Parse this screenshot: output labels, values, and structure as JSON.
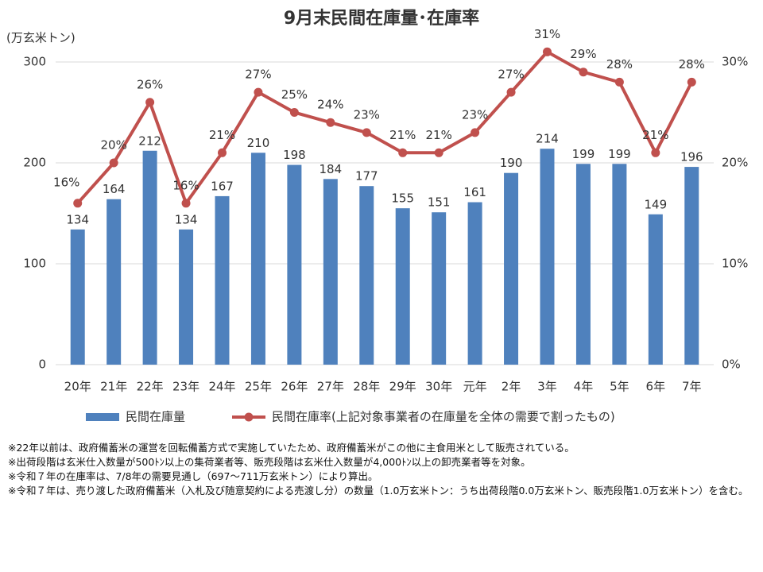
{
  "chart_data": {
    "type": "bar-line",
    "title": "9月末民間在庫量･在庫率",
    "y_label": "(万玄米トン)",
    "categories": [
      "20年",
      "21年",
      "22年",
      "23年",
      "24年",
      "25年",
      "26年",
      "27年",
      "28年",
      "29年",
      "30年",
      "元年",
      "2年",
      "3年",
      "4年",
      "5年",
      "6年",
      "7年"
    ],
    "series": [
      {
        "name": "民間在庫量",
        "type": "bar",
        "color": "#4f81bd",
        "values": [
          134,
          164,
          212,
          134,
          167,
          210,
          198,
          184,
          177,
          155,
          151,
          161,
          190,
          214,
          199,
          199,
          149,
          196
        ]
      },
      {
        "name": "民間在庫率(上記対象事業者の在庫量を全体の需要で割ったもの)",
        "type": "line",
        "axis": "y2",
        "color": "#c0504d",
        "values": [
          16,
          20,
          26,
          16,
          21,
          27,
          25,
          24,
          23,
          21,
          21,
          23,
          27,
          31,
          29,
          28,
          21,
          28
        ],
        "value_labels": [
          "16%",
          "20%",
          "26%",
          "16%",
          "21%",
          "27%",
          "25%",
          "24%",
          "23%",
          "21%",
          "21%",
          "23%",
          "27%",
          "31%",
          "29%",
          "28%",
          "21%",
          "28%"
        ]
      }
    ],
    "ylim": [
      0,
      300
    ],
    "yticks": [
      0,
      100,
      200,
      300
    ],
    "y2lim": [
      0,
      30
    ],
    "y2ticks": [
      {
        "value": 0,
        "label": "0%"
      },
      {
        "value": 10,
        "label": "10%"
      },
      {
        "value": 20,
        "label": "20%"
      },
      {
        "value": 30,
        "label": "30%"
      }
    ],
    "grid": true,
    "notes": [
      "※22年以前は、政府備蓄米の運営を回転備蓄方式で実施していたため、政府備蓄米がこの他に主食用米として販売されている。",
      "※出荷段階は玄米仕入数量が500ﾄﾝ以上の集荷業者等、販売段階は玄米仕入数量が4,000ﾄﾝ以上の卸売業者等を対象。",
      "※令和７年の在庫率は、7/8年の需要見通し（697～711万玄米トン）により算出。",
      "※令和７年は、売り渡した政府備蓄米（入札及び随意契約による売渡し分）の数量（1.0万玄米トン：うち出荷段階0.0万玄米トン、販売段階1.0万玄米トン）を含む。"
    ]
  }
}
